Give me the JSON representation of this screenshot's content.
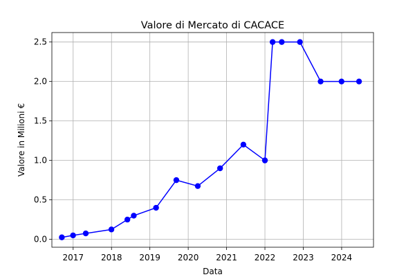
{
  "chart_data": {
    "type": "line",
    "title": "Valore di Mercato di CACACE",
    "xlabel": "Data",
    "ylabel": "Valore in Milioni €",
    "x_ticks": [
      "2017",
      "2018",
      "2019",
      "2020",
      "2021",
      "2022",
      "2023",
      "2024"
    ],
    "y_ticks": [
      "0.0",
      "0.5",
      "1.0",
      "1.5",
      "2.0",
      "2.5"
    ],
    "xlim": [
      "2016-06-12",
      "2024-10-31"
    ],
    "ylim": [
      -0.1,
      2.62
    ],
    "grid": true,
    "color": "#0000ff",
    "marker": "circle",
    "series": [
      {
        "x": [
          "2016-09-15",
          "2016-12-31",
          "2017-05-01",
          "2017-12-31",
          "2018-06-01",
          "2018-08-01",
          "2019-03-01",
          "2019-09-10",
          "2020-04-01",
          "2020-10-31",
          "2021-06-10",
          "2022-01-01",
          "2022-03-15",
          "2022-06-10",
          "2022-11-30",
          "2023-06-15",
          "2023-12-31",
          "2024-06-15"
        ],
        "y": [
          0.025,
          0.05,
          0.075,
          0.125,
          0.25,
          0.3,
          0.4,
          0.75,
          0.675,
          0.9,
          1.2,
          1.0,
          2.5,
          2.5,
          2.5,
          2.0,
          2.0,
          2.0
        ]
      }
    ]
  }
}
